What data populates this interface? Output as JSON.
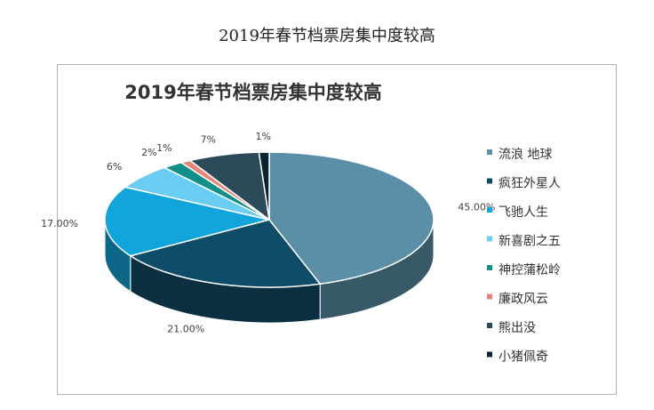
{
  "caption": "2019年春节档票房集中度较高",
  "chart_data": {
    "type": "pie",
    "title": "2019年春节档票房集中度较高",
    "legend_position": "right",
    "categories": [
      "流浪 地球",
      "疯狂外星人",
      "飞驰人生",
      "新喜剧之五",
      "神控蒲松岭",
      "廉政风云",
      "熊出没",
      "小猪佩奇"
    ],
    "values": [
      45,
      21,
      17,
      6,
      2,
      1,
      7,
      1
    ],
    "value_labels": [
      "45.00%",
      "21.00%",
      "17.00%",
      "6%",
      "2%",
      "1%",
      "7%",
      "1%"
    ],
    "colors": [
      "#5b8fa8",
      "#0f4c67",
      "#11a5dc",
      "#6ccdf2",
      "#128f86",
      "#e8857a",
      "#2d4a5b",
      "#0b2433"
    ]
  }
}
